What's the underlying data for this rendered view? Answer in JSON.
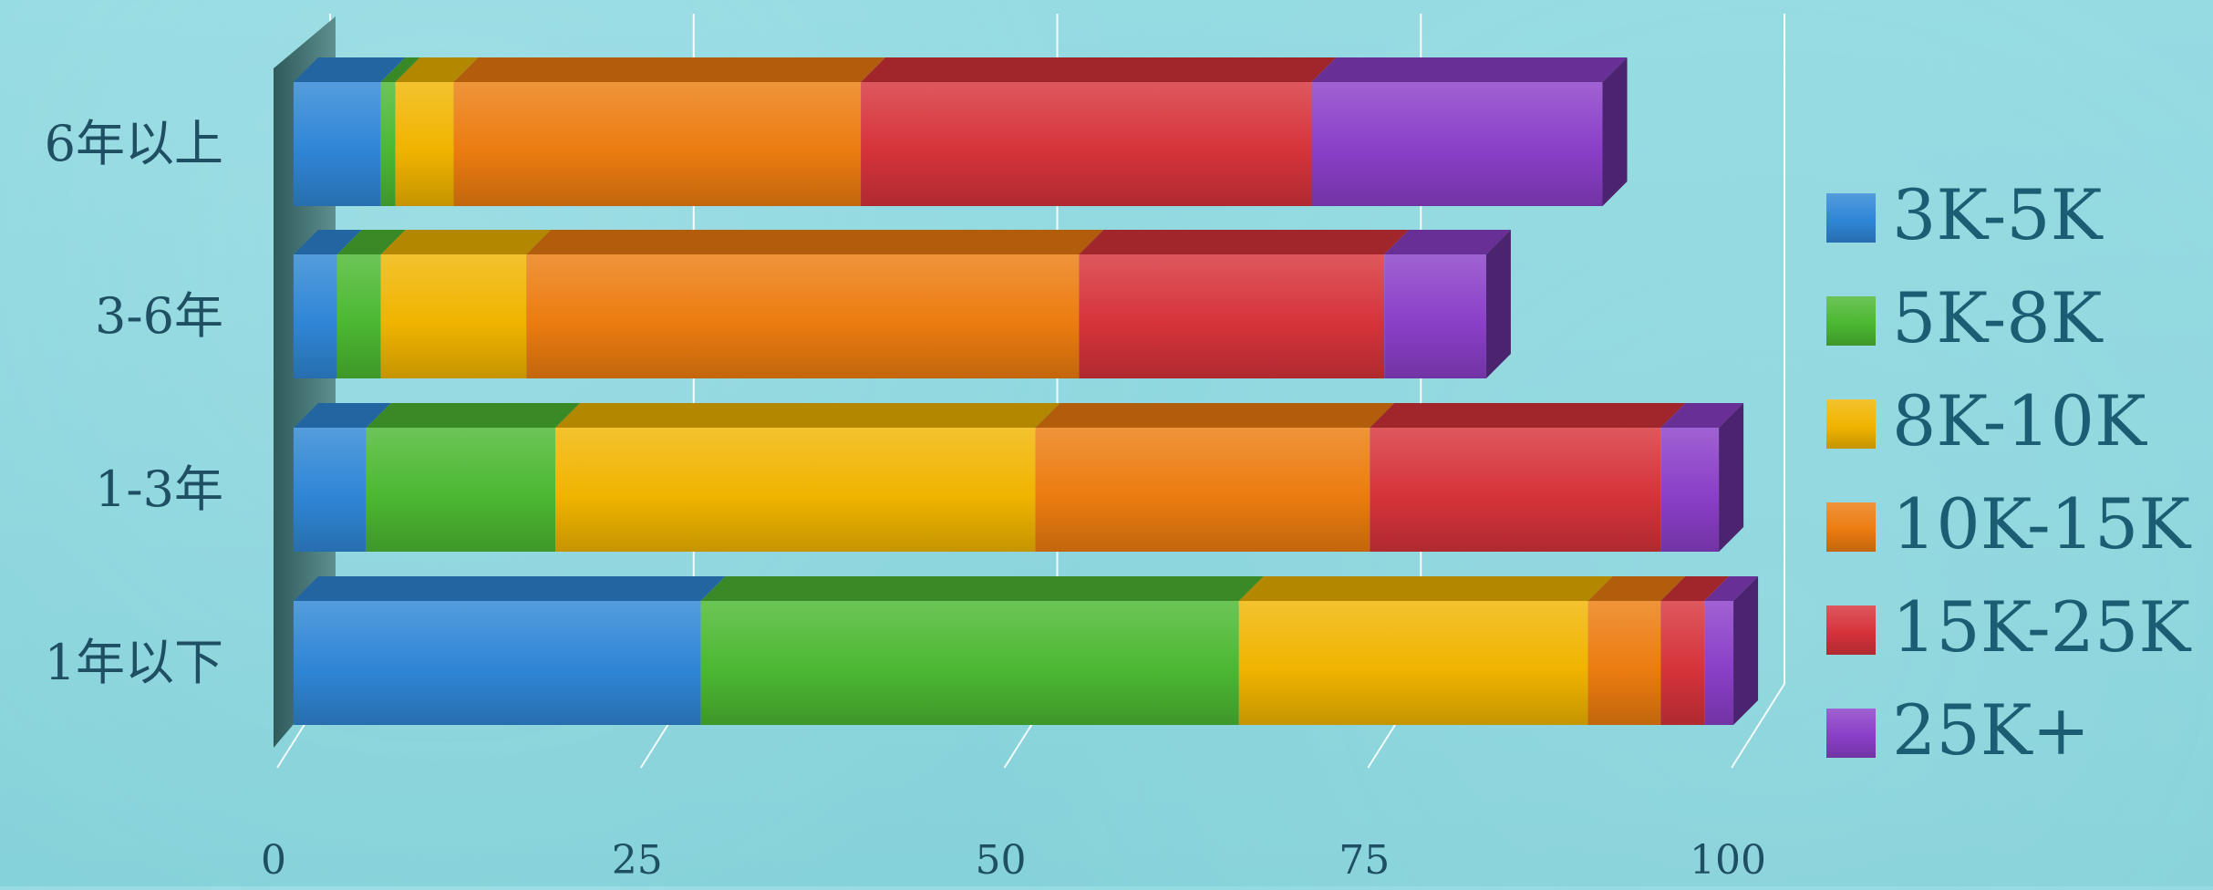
{
  "chart_data": {
    "type": "bar",
    "orientation": "horizontal",
    "stacked": true,
    "3d": true,
    "categories": [
      "6年以上",
      "3-6年",
      "1-3年",
      "1年以下"
    ],
    "series": [
      {
        "name": "3K-5K",
        "color": "#2f86d6",
        "values": [
          6,
          3,
          5,
          28
        ]
      },
      {
        "name": "5K-8K",
        "color": "#4cb832",
        "values": [
          1,
          3,
          13,
          37
        ]
      },
      {
        "name": "8K-10K",
        "color": "#f0b400",
        "values": [
          4,
          10,
          33,
          24
        ]
      },
      {
        "name": "10K-15K",
        "color": "#ec7c10",
        "values": [
          28,
          38,
          23,
          5
        ]
      },
      {
        "name": "15K-25K",
        "color": "#d6333a",
        "values": [
          31,
          21,
          20,
          3
        ]
      },
      {
        "name": "25K+",
        "color": "#8a3fc8",
        "values": [
          20,
          7,
          4,
          2
        ]
      }
    ],
    "xlim": [
      0,
      100
    ],
    "xticks": [
      "0",
      "25",
      "50",
      "75",
      "100"
    ],
    "grid": true,
    "legend_position": "right"
  }
}
